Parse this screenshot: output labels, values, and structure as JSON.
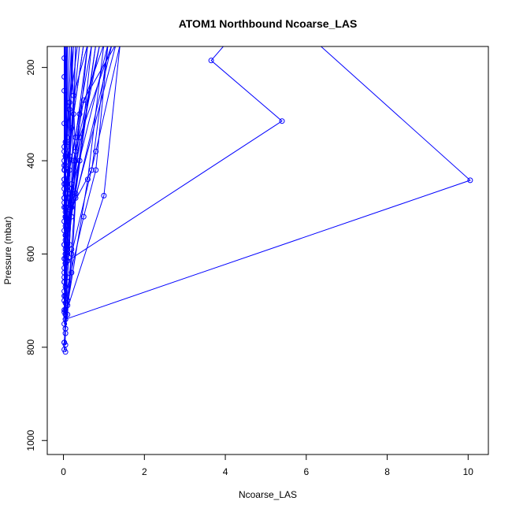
{
  "chart_data": {
    "type": "line",
    "title": "ATOM1 Northbound Ncoarse_LAS",
    "xlabel": "Ncoarse_LAS",
    "ylabel": "Pressure (mbar)",
    "xlim": [
      -0.4,
      10.5
    ],
    "ylim": [
      1030,
      155
    ],
    "y_reversed": true,
    "x_ticks": [
      0,
      2,
      4,
      6,
      8,
      10
    ],
    "y_ticks": [
      200,
      400,
      600,
      800,
      1000
    ],
    "grid": false,
    "legend": "none",
    "series_color": "#0000ff",
    "marker": "open-circle",
    "series": [
      {
        "x": [
          0.05,
          0.02,
          0.1,
          0.05,
          0.8
        ],
        "y": [
          810,
          790,
          700,
          600,
          150
        ]
      },
      {
        "x": [
          0.02,
          0.05,
          0.02,
          0.1,
          0.9
        ],
        "y": [
          805,
          770,
          650,
          500,
          150
        ]
      },
      {
        "x": [
          0.05,
          0.02,
          0.05,
          1.3
        ],
        "y": [
          795,
          720,
          560,
          150
        ]
      },
      {
        "x": [
          0.02,
          0.05,
          0.02,
          0.05,
          0.4
        ],
        "y": [
          790,
          740,
          630,
          470,
          150
        ]
      },
      {
        "x": [
          0.05,
          0.02,
          0.1,
          0.6
        ],
        "y": [
          760,
          690,
          580,
          150
        ]
      },
      {
        "x": [
          0.02,
          0.1,
          0.05,
          0.05,
          1.1
        ],
        "y": [
          750,
          700,
          610,
          520,
          150
        ]
      },
      {
        "x": [
          0.05,
          0.02,
          0.05,
          0.3,
          0.2
        ],
        "y": [
          730,
          660,
          540,
          400,
          150
        ]
      },
      {
        "x": [
          0.02,
          0.05,
          0.02,
          0.7
        ],
        "y": [
          725,
          620,
          480,
          150
        ]
      },
      {
        "x": [
          0.05,
          0.1,
          0.2,
          0.3
        ],
        "y": [
          705,
          590,
          450,
          150
        ]
      },
      {
        "x": [
          0.02,
          0.05,
          0.05,
          0.1
        ],
        "y": [
          700,
          600,
          500,
          150
        ]
      },
      {
        "x": [
          0.05,
          0.02,
          0.05
        ],
        "y": [
          690,
          580,
          150
        ]
      },
      {
        "x": [
          0.02,
          0.05,
          0.1,
          0.25
        ],
        "y": [
          680,
          560,
          430,
          150
        ]
      },
      {
        "x": [
          0.05,
          0.1,
          0.02,
          0.5
        ],
        "y": [
          670,
          540,
          440,
          150
        ]
      },
      {
        "x": [
          0.02,
          0.05,
          0.05,
          0.15
        ],
        "y": [
          660,
          520,
          390,
          150
        ]
      },
      {
        "x": [
          0.02,
          0.05,
          0.05,
          0.2
        ],
        "y": [
          640,
          510,
          410,
          150
        ]
      },
      {
        "x": [
          0.05,
          0.02,
          0.1,
          0.05
        ],
        "y": [
          620,
          480,
          370,
          150
        ]
      },
      {
        "x": [
          0.02,
          0.05,
          0.02,
          0.1
        ],
        "y": [
          610,
          470,
          380,
          150
        ]
      },
      {
        "x": [
          0.05,
          0.02,
          0.05,
          0.08
        ],
        "y": [
          590,
          460,
          360,
          150
        ]
      },
      {
        "x": [
          0.02,
          0.05,
          0.02,
          0.04
        ],
        "y": [
          580,
          450,
          320,
          150
        ]
      },
      {
        "x": [
          0.05,
          0.02,
          0.05
        ],
        "y": [
          570,
          440,
          150
        ]
      },
      {
        "x": [
          0.02,
          0.03,
          0.02
        ],
        "y": [
          550,
          420,
          150
        ]
      },
      {
        "x": [
          0.02,
          0.05
        ],
        "y": [
          530,
          150
        ]
      },
      {
        "x": [
          0.02,
          0.02,
          0.03
        ],
        "y": [
          500,
          410,
          150
        ]
      },
      {
        "x": [
          0.02,
          0.02
        ],
        "y": [
          490,
          150
        ]
      },
      {
        "x": [
          0.02,
          0.05,
          0.02
        ],
        "y": [
          450,
          390,
          150
        ]
      },
      {
        "x": [
          0.02,
          0.03
        ],
        "y": [
          420,
          150
        ]
      },
      {
        "x": [
          0.02,
          0.02,
          0.02
        ],
        "y": [
          400,
          250,
          150
        ]
      },
      {
        "x": [
          0.02,
          0.02,
          0.02
        ],
        "y": [
          370,
          220,
          150
        ]
      },
      {
        "x": [
          0.02,
          0.02
        ],
        "y": [
          180,
          150
        ]
      },
      {
        "x": [
          0.05,
          0.2,
          0.3,
          1.2
        ],
        "y": [
          760,
          640,
          480,
          150
        ]
      },
      {
        "x": [
          0.1,
          0.2,
          0.8,
          1.4
        ],
        "y": [
          730,
          600,
          380,
          150
        ]
      },
      {
        "x": [
          0.05,
          0.2,
          0.7,
          1.1
        ],
        "y": [
          720,
          500,
          420,
          150
        ]
      },
      {
        "x": [
          0.1,
          0.6,
          1.0
        ],
        "y": [
          710,
          440,
          150
        ]
      },
      {
        "x": [
          0.05,
          0.1,
          0.3,
          0.9
        ],
        "y": [
          620,
          540,
          380,
          150
        ]
      },
      {
        "x": [
          0.05,
          0.15,
          0.3,
          0.6
        ],
        "y": [
          500,
          420,
          350,
          150
        ]
      },
      {
        "x": [
          0.1,
          0.2,
          0.4,
          1.0
        ],
        "y": [
          650,
          460,
          300,
          150
        ]
      },
      {
        "x": [
          0.15,
          0.25,
          0.5,
          1.3
        ],
        "y": [
          580,
          400,
          270,
          150
        ]
      },
      {
        "x": [
          0.05,
          0.1,
          0.2,
          0.5
        ],
        "y": [
          520,
          480,
          330,
          150
        ]
      },
      {
        "x": [
          0.1,
          0.15,
          0.35
        ],
        "y": [
          470,
          290,
          150
        ]
      },
      {
        "x": [
          0.1,
          0.15,
          0.25,
          0.6
        ],
        "y": [
          540,
          390,
          260,
          150
        ]
      },
      {
        "x": [
          0.05,
          0.1,
          0.25,
          0.3
        ],
        "y": [
          560,
          450,
          300,
          150
        ]
      },
      {
        "x": [
          0.1,
          0.2,
          0.4,
          0.7
        ],
        "y": [
          600,
          520,
          400,
          150
        ]
      },
      {
        "x": [
          0.05,
          0.5,
          0.8,
          1.1
        ],
        "y": [
          690,
          520,
          420,
          150
        ]
      },
      {
        "x": [
          0.1,
          0.2,
          0.3,
          0.8
        ],
        "y": [
          700,
          590,
          470,
          150
        ]
      },
      {
        "x": [
          0.05,
          1.0,
          1.4
        ],
        "y": [
          730,
          475,
          150
        ]
      },
      {
        "x": [
          0.1,
          0.2,
          0.4,
          1.2
        ],
        "y": [
          650,
          500,
          350,
          150
        ]
      },
      {
        "x": [
          0.1,
          0.15,
          0.25
        ],
        "y": [
          350,
          275,
          150
        ]
      },
      {
        "x": [
          0.05,
          0.15,
          0.2
        ],
        "y": [
          620,
          505,
          150
        ]
      },
      {
        "x": [
          0.1,
          5.4,
          3.65,
          4.0
        ],
        "y": [
          615,
          315,
          185,
          150
        ]
      },
      {
        "x": [
          0.05,
          10.05,
          6.3
        ],
        "y": [
          740,
          442,
          150
        ]
      }
    ]
  }
}
